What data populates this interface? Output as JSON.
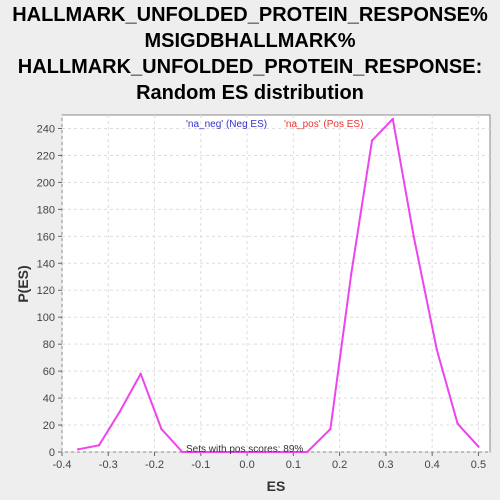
{
  "chart_data": {
    "type": "line",
    "title_lines": [
      "HALLMARK_UNFOLDED_PROTEIN_RESPONSE%",
      "MSIGDBHALLMARK%",
      "HALLMARK_UNFOLDED_PROTEIN_RESPONSE:",
      "Random ES distribution"
    ],
    "xlabel": "ES",
    "ylabel": "P(ES)",
    "xlim": [
      -0.4,
      0.525
    ],
    "ylim": [
      0,
      250
    ],
    "x_ticks": [
      "-0.4",
      "-0.3",
      "-0.2",
      "-0.1",
      "0.0",
      "0.1",
      "0.2",
      "0.3",
      "0.4",
      "0.5"
    ],
    "y_ticks": [
      "0",
      "20",
      "40",
      "60",
      "80",
      "100",
      "120",
      "140",
      "160",
      "180",
      "200",
      "220",
      "240"
    ],
    "grid": true,
    "legend": [
      {
        "label": "'na_neg' (Neg ES)",
        "color": "#3333cc"
      },
      {
        "label": "'na_pos' (Pos ES)",
        "color": "#ee3333"
      }
    ],
    "annotation": "Sets with pos scores: 89%",
    "line_color": "#ee44ee",
    "series": [
      {
        "x": [
          -0.365,
          -0.32,
          -0.275,
          -0.23,
          -0.185,
          -0.14,
          -0.095,
          -0.05,
          -0.005,
          0.04,
          0.085,
          0.13,
          0.18,
          0.225,
          0.27,
          0.315,
          0.36,
          0.41,
          0.455,
          0.5
        ],
        "y": [
          2,
          5,
          30,
          58,
          17,
          0,
          0,
          0,
          0,
          0,
          0,
          0,
          17,
          132,
          231,
          247,
          160,
          76,
          21,
          4
        ]
      }
    ]
  }
}
